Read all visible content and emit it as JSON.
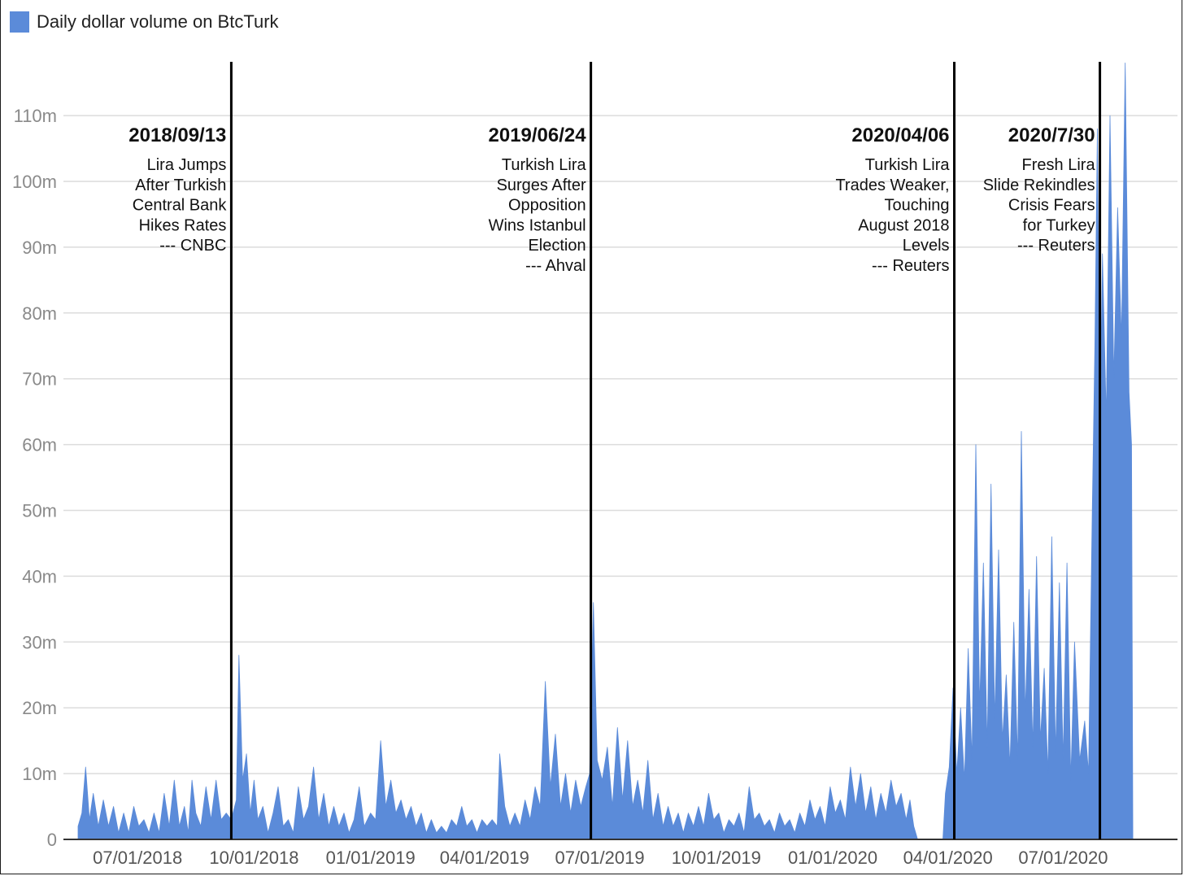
{
  "chart_data": {
    "type": "area",
    "legend": {
      "label": "Daily dollar volume on BtcTurk",
      "position": "top-left"
    },
    "color": "#5b8bd9",
    "y_axis": {
      "range": [
        0,
        118
      ],
      "ticks": [
        0,
        10,
        20,
        30,
        40,
        50,
        60,
        70,
        80,
        90,
        100,
        110
      ],
      "tick_labels": [
        "0",
        "10m",
        "20m",
        "30m",
        "40m",
        "50m",
        "60m",
        "70m",
        "80m",
        "90m",
        "100m",
        "110m"
      ],
      "grid": true
    },
    "x_axis": {
      "range": [
        "2018-05-15",
        "2020-09-19"
      ],
      "ticks": [
        "2018-07-01",
        "2018-10-01",
        "2019-01-01",
        "2019-04-01",
        "2019-07-01",
        "2019-10-01",
        "2020-01-01",
        "2020-04-01",
        "2020-07-01"
      ],
      "tick_labels": [
        "07/01/2018",
        "10/01/2018",
        "01/01/2019",
        "04/01/2019",
        "07/01/2019",
        "10/01/2019",
        "01/01/2020",
        "04/01/2020",
        "07/01/2020"
      ]
    },
    "series": [
      {
        "name": "Daily dollar volume on BtcTurk",
        "units": "millions USD",
        "points": [
          [
            "2018-05-15",
            2
          ],
          [
            "2018-05-18",
            4
          ],
          [
            "2018-05-21",
            11
          ],
          [
            "2018-05-24",
            3
          ],
          [
            "2018-05-27",
            7
          ],
          [
            "2018-05-31",
            2
          ],
          [
            "2018-06-04",
            6
          ],
          [
            "2018-06-08",
            2
          ],
          [
            "2018-06-12",
            5
          ],
          [
            "2018-06-16",
            1
          ],
          [
            "2018-06-20",
            4
          ],
          [
            "2018-06-24",
            1
          ],
          [
            "2018-06-28",
            5
          ],
          [
            "2018-07-02",
            2
          ],
          [
            "2018-07-06",
            3
          ],
          [
            "2018-07-10",
            1
          ],
          [
            "2018-07-14",
            4
          ],
          [
            "2018-07-18",
            1
          ],
          [
            "2018-07-22",
            7
          ],
          [
            "2018-07-26",
            2
          ],
          [
            "2018-07-30",
            9
          ],
          [
            "2018-08-03",
            2
          ],
          [
            "2018-08-07",
            5
          ],
          [
            "2018-08-10",
            1
          ],
          [
            "2018-08-13",
            9
          ],
          [
            "2018-08-16",
            4
          ],
          [
            "2018-08-20",
            2
          ],
          [
            "2018-08-24",
            8
          ],
          [
            "2018-08-28",
            3
          ],
          [
            "2018-09-01",
            9
          ],
          [
            "2018-09-05",
            3
          ],
          [
            "2018-09-09",
            4
          ],
          [
            "2018-09-13",
            3
          ],
          [
            "2018-09-17",
            6
          ],
          [
            "2018-09-19",
            28
          ],
          [
            "2018-09-22",
            9
          ],
          [
            "2018-09-25",
            13
          ],
          [
            "2018-09-28",
            4
          ],
          [
            "2018-10-01",
            9
          ],
          [
            "2018-10-04",
            3
          ],
          [
            "2018-10-08",
            5
          ],
          [
            "2018-10-12",
            1
          ],
          [
            "2018-10-16",
            4
          ],
          [
            "2018-10-20",
            8
          ],
          [
            "2018-10-24",
            2
          ],
          [
            "2018-10-28",
            3
          ],
          [
            "2018-11-01",
            1
          ],
          [
            "2018-11-05",
            8
          ],
          [
            "2018-11-09",
            3
          ],
          [
            "2018-11-13",
            5
          ],
          [
            "2018-11-17",
            11
          ],
          [
            "2018-11-21",
            3
          ],
          [
            "2018-11-25",
            7
          ],
          [
            "2018-11-29",
            2
          ],
          [
            "2018-12-03",
            5
          ],
          [
            "2018-12-07",
            2
          ],
          [
            "2018-12-11",
            4
          ],
          [
            "2018-12-15",
            1
          ],
          [
            "2018-12-19",
            3
          ],
          [
            "2018-12-23",
            8
          ],
          [
            "2018-12-27",
            2
          ],
          [
            "2019-01-01",
            4
          ],
          [
            "2019-01-05",
            3
          ],
          [
            "2019-01-09",
            15
          ],
          [
            "2019-01-13",
            5
          ],
          [
            "2019-01-17",
            9
          ],
          [
            "2019-01-21",
            4
          ],
          [
            "2019-01-25",
            6
          ],
          [
            "2019-01-29",
            3
          ],
          [
            "2019-02-02",
            5
          ],
          [
            "2019-02-06",
            2
          ],
          [
            "2019-02-10",
            4
          ],
          [
            "2019-02-14",
            1
          ],
          [
            "2019-02-18",
            3
          ],
          [
            "2019-02-22",
            1
          ],
          [
            "2019-02-26",
            2
          ],
          [
            "2019-03-02",
            1
          ],
          [
            "2019-03-06",
            3
          ],
          [
            "2019-03-10",
            2
          ],
          [
            "2019-03-14",
            5
          ],
          [
            "2019-03-18",
            2
          ],
          [
            "2019-03-22",
            3
          ],
          [
            "2019-03-26",
            1
          ],
          [
            "2019-03-30",
            3
          ],
          [
            "2019-04-03",
            2
          ],
          [
            "2019-04-07",
            3
          ],
          [
            "2019-04-11",
            2
          ],
          [
            "2019-04-13",
            13
          ],
          [
            "2019-04-17",
            5
          ],
          [
            "2019-04-21",
            2
          ],
          [
            "2019-04-25",
            4
          ],
          [
            "2019-04-29",
            2
          ],
          [
            "2019-05-03",
            6
          ],
          [
            "2019-05-07",
            3
          ],
          [
            "2019-05-11",
            8
          ],
          [
            "2019-05-15",
            5
          ],
          [
            "2019-05-19",
            24
          ],
          [
            "2019-05-23",
            8
          ],
          [
            "2019-05-27",
            16
          ],
          [
            "2019-05-31",
            5
          ],
          [
            "2019-06-04",
            10
          ],
          [
            "2019-06-08",
            4
          ],
          [
            "2019-06-12",
            9
          ],
          [
            "2019-06-16",
            5
          ],
          [
            "2019-06-20",
            8
          ],
          [
            "2019-06-23",
            10
          ],
          [
            "2019-06-26",
            36
          ],
          [
            "2019-06-29",
            12
          ],
          [
            "2019-07-03",
            9
          ],
          [
            "2019-07-07",
            14
          ],
          [
            "2019-07-11",
            5
          ],
          [
            "2019-07-15",
            17
          ],
          [
            "2019-07-19",
            6
          ],
          [
            "2019-07-23",
            15
          ],
          [
            "2019-07-27",
            5
          ],
          [
            "2019-07-31",
            9
          ],
          [
            "2019-08-04",
            4
          ],
          [
            "2019-08-08",
            12
          ],
          [
            "2019-08-12",
            3
          ],
          [
            "2019-08-16",
            7
          ],
          [
            "2019-08-20",
            2
          ],
          [
            "2019-08-24",
            5
          ],
          [
            "2019-08-28",
            2
          ],
          [
            "2019-09-01",
            4
          ],
          [
            "2019-09-05",
            1
          ],
          [
            "2019-09-09",
            4
          ],
          [
            "2019-09-13",
            2
          ],
          [
            "2019-09-17",
            5
          ],
          [
            "2019-09-21",
            2
          ],
          [
            "2019-09-25",
            7
          ],
          [
            "2019-09-29",
            3
          ],
          [
            "2019-10-03",
            4
          ],
          [
            "2019-10-07",
            1
          ],
          [
            "2019-10-11",
            3
          ],
          [
            "2019-10-15",
            2
          ],
          [
            "2019-10-19",
            4
          ],
          [
            "2019-10-23",
            1
          ],
          [
            "2019-10-27",
            8
          ],
          [
            "2019-10-31",
            3
          ],
          [
            "2019-11-04",
            4
          ],
          [
            "2019-11-08",
            2
          ],
          [
            "2019-11-12",
            3
          ],
          [
            "2019-11-16",
            1
          ],
          [
            "2019-11-20",
            4
          ],
          [
            "2019-11-24",
            2
          ],
          [
            "2019-11-28",
            3
          ],
          [
            "2019-12-02",
            1
          ],
          [
            "2019-12-06",
            4
          ],
          [
            "2019-12-10",
            2
          ],
          [
            "2019-12-14",
            6
          ],
          [
            "2019-12-18",
            3
          ],
          [
            "2019-12-22",
            5
          ],
          [
            "2019-12-26",
            2
          ],
          [
            "2019-12-30",
            8
          ],
          [
            "2020-01-03",
            4
          ],
          [
            "2020-01-07",
            6
          ],
          [
            "2020-01-11",
            3
          ],
          [
            "2020-01-15",
            11
          ],
          [
            "2020-01-19",
            5
          ],
          [
            "2020-01-23",
            10
          ],
          [
            "2020-01-27",
            4
          ],
          [
            "2020-01-31",
            8
          ],
          [
            "2020-02-04",
            3
          ],
          [
            "2020-02-08",
            7
          ],
          [
            "2020-02-12",
            4
          ],
          [
            "2020-02-16",
            9
          ],
          [
            "2020-02-20",
            5
          ],
          [
            "2020-02-24",
            7
          ],
          [
            "2020-02-28",
            3
          ],
          [
            "2020-03-02",
            6
          ],
          [
            "2020-03-05",
            2
          ],
          [
            "2020-03-08",
            0
          ],
          [
            "2020-03-28",
            0
          ],
          [
            "2020-03-30",
            7
          ],
          [
            "2020-04-02",
            11
          ],
          [
            "2020-04-05",
            23
          ],
          [
            "2020-04-08",
            10
          ],
          [
            "2020-04-11",
            20
          ],
          [
            "2020-04-14",
            9
          ],
          [
            "2020-04-17",
            29
          ],
          [
            "2020-04-20",
            12
          ],
          [
            "2020-04-23",
            60
          ],
          [
            "2020-04-26",
            20
          ],
          [
            "2020-04-29",
            42
          ],
          [
            "2020-05-02",
            14
          ],
          [
            "2020-05-05",
            54
          ],
          [
            "2020-05-08",
            18
          ],
          [
            "2020-05-11",
            44
          ],
          [
            "2020-05-14",
            15
          ],
          [
            "2020-05-17",
            25
          ],
          [
            "2020-05-20",
            11
          ],
          [
            "2020-05-23",
            33
          ],
          [
            "2020-05-26",
            12
          ],
          [
            "2020-05-29",
            62
          ],
          [
            "2020-06-01",
            19
          ],
          [
            "2020-06-04",
            38
          ],
          [
            "2020-06-07",
            14
          ],
          [
            "2020-06-10",
            43
          ],
          [
            "2020-06-13",
            15
          ],
          [
            "2020-06-16",
            26
          ],
          [
            "2020-06-19",
            10
          ],
          [
            "2020-06-22",
            46
          ],
          [
            "2020-06-25",
            13
          ],
          [
            "2020-06-28",
            39
          ],
          [
            "2020-07-01",
            12
          ],
          [
            "2020-07-04",
            42
          ],
          [
            "2020-07-07",
            9
          ],
          [
            "2020-07-10",
            30
          ],
          [
            "2020-07-14",
            12
          ],
          [
            "2020-07-18",
            18
          ],
          [
            "2020-07-21",
            10
          ],
          [
            "2020-07-24",
            50
          ],
          [
            "2020-07-26",
            75
          ],
          [
            "2020-07-28",
            108
          ],
          [
            "2020-07-30",
            62
          ],
          [
            "2020-08-01",
            89
          ],
          [
            "2020-08-04",
            64
          ],
          [
            "2020-08-07",
            110
          ],
          [
            "2020-08-10",
            70
          ],
          [
            "2020-08-13",
            96
          ],
          [
            "2020-08-16",
            76
          ],
          [
            "2020-08-19",
            118
          ],
          [
            "2020-08-22",
            68
          ],
          [
            "2020-08-24",
            60
          ],
          [
            "2020-08-25",
            0
          ]
        ]
      }
    ],
    "annotations": [
      {
        "date": "2018-09-13",
        "label": "2018/09/13",
        "lines": [
          "Lira Jumps",
          "After Turkish",
          "Central Bank",
          "Hikes Rates",
          "--- CNBC"
        ]
      },
      {
        "date": "2019-06-24",
        "label": "2019/06/24",
        "lines": [
          "Turkish Lira",
          "Surges After",
          "Opposition",
          "Wins Istanbul",
          "Election",
          "--- Ahval"
        ]
      },
      {
        "date": "2020-04-06",
        "label": "2020/04/06",
        "lines": [
          "Turkish Lira",
          "Trades Weaker,",
          "Touching",
          "August 2018",
          "Levels",
          "--- Reuters"
        ]
      },
      {
        "date": "2020-07-30",
        "label": "2020/7/30",
        "lines": [
          "Fresh Lira",
          "Slide Rekindles",
          "Crisis Fears",
          "for Turkey",
          "--- Reuters"
        ]
      }
    ]
  }
}
